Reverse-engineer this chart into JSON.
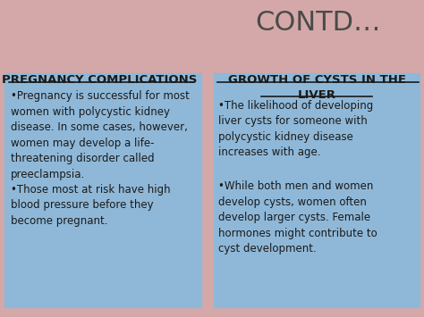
{
  "title": "CONTD…",
  "title_color": "#4a4a4a",
  "title_fontsize": 22,
  "background_color": "#d4a8a8",
  "box_color": "#8fb8d8",
  "left_heading": "PREGNANCY COMPLICATIONS",
  "right_heading_line1": "GROWTH OF CYSTS IN THE",
  "right_heading_line2": "LIVER",
  "heading_fontsize": 9.5,
  "heading_color": "#1a1a1a",
  "body_fontsize": 8.5,
  "body_color": "#1a1a1a",
  "left_bullets": [
    "•Pregnancy is successful for most\nwomen with polycystic kidney\ndisease. In some cases, however,\nwomen may develop a life-\nthreatening disorder called\npreeclampsia.",
    "•Those most at risk have high\nblood pressure before they\nbecome pregnant."
  ],
  "right_bullets": [
    "•The likelihood of developing\nliver cysts for someone with\npolycystic kidney disease\nincreases with age.",
    "•While both men and women\ndevelop cysts, women often\ndevelop larger cysts. Female\nhormones might contribute to\ncyst development."
  ]
}
